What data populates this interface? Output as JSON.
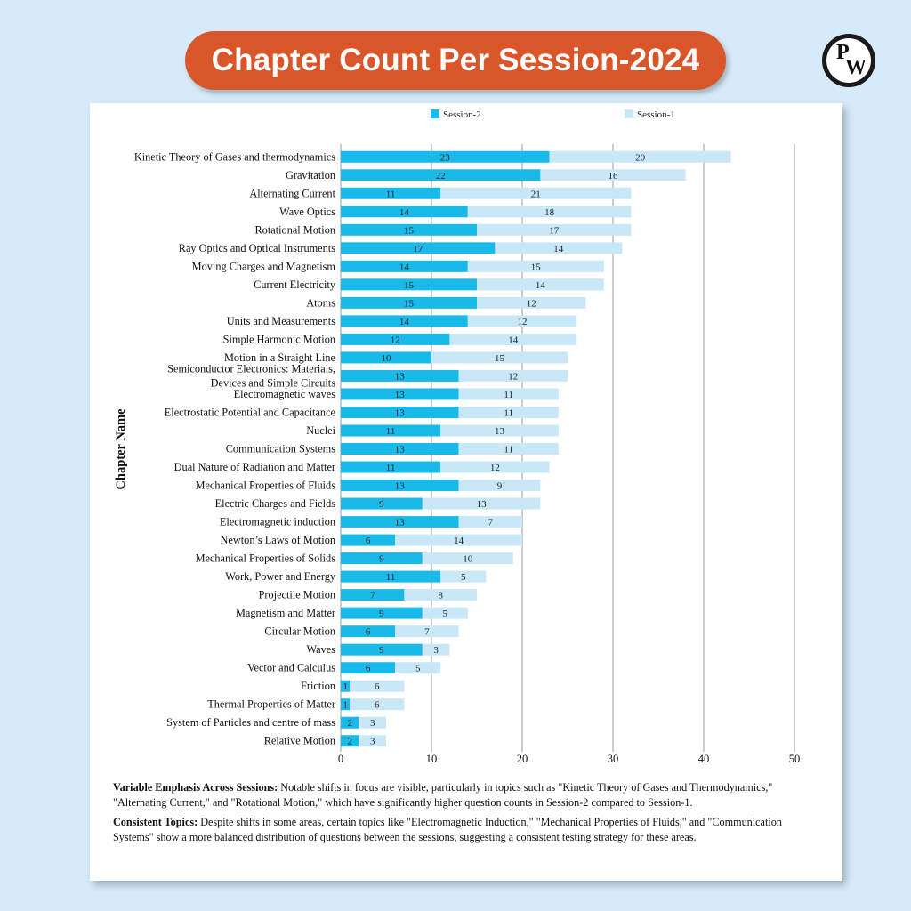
{
  "header": {
    "title": "Chapter Count Per Session-2024",
    "logo_letters": "PW"
  },
  "colors": {
    "background": "#d6ebfa",
    "title_pill": "#d9562b",
    "session2": "#19b9ea",
    "session1": "#c9e8f7"
  },
  "chart_data": {
    "type": "bar",
    "orientation": "horizontal",
    "stacked": true,
    "ylabel": "Chapter Name",
    "xlim": [
      0,
      50
    ],
    "xticks": [
      0,
      10,
      20,
      30,
      40,
      50
    ],
    "grid": "vertical",
    "legend_position": "top",
    "categories": [
      "Kinetic Theory of Gases and thermodynamics",
      "Gravitation",
      "Alternating Current",
      "Wave Optics",
      "Rotational Motion",
      "Ray Optics and Optical Instruments",
      "Moving Charges and Magnetism",
      "Current Electricity",
      "Atoms",
      "Units and Measurements",
      "Simple Harmonic Motion",
      "Motion in a Straight Line",
      "Semiconductor Electronics: Materials, Devices and Simple Circuits",
      "Electromagnetic waves",
      "Electrostatic Potential and Capacitance",
      "Nuclei",
      "Communication Systems",
      "Dual Nature of Radiation and Matter",
      "Mechanical Properties of Fluids",
      "Electric Charges and Fields",
      "Electromagnetic induction",
      "Newton’s Laws of Motion",
      "Mechanical Properties of Solids",
      "Work, Power and Energy",
      "Projectile Motion",
      "Magnetism and Matter",
      "Circular Motion",
      "Waves",
      "Vector and Calculus",
      "Friction",
      "Thermal Properties of Matter",
      "System of Particles and centre of mass",
      "Relative Motion"
    ],
    "series": [
      {
        "name": "Session-2",
        "values": [
          23,
          22,
          11,
          14,
          15,
          17,
          14,
          15,
          15,
          14,
          12,
          10,
          13,
          13,
          13,
          11,
          13,
          11,
          13,
          9,
          13,
          6,
          9,
          11,
          7,
          9,
          6,
          9,
          6,
          1,
          1,
          2,
          2
        ]
      },
      {
        "name": "Session-1",
        "values": [
          20,
          16,
          21,
          18,
          17,
          14,
          15,
          14,
          12,
          12,
          14,
          15,
          12,
          11,
          11,
          13,
          11,
          12,
          9,
          13,
          7,
          14,
          10,
          5,
          8,
          5,
          7,
          3,
          5,
          6,
          6,
          3,
          3
        ]
      }
    ]
  },
  "notes": [
    {
      "heading": "Variable Emphasis Across Sessions:",
      "text": " Notable shifts in focus are visible, particularly in topics such as \"Kinetic Theory of Gases and Thermodynamics,\" \"Alternating Current,\" and \"Rotational Motion,\" which have significantly higher question counts in Session-2 compared to Session-1."
    },
    {
      "heading": "Consistent Topics:",
      "text": " Despite shifts in some areas, certain topics like \"Electromagnetic Induction,\" \"Mechanical Properties of Fluids,\" and \"Communication Systems\" show a more balanced distribution of questions between the sessions, suggesting a consistent testing strategy for these areas."
    }
  ]
}
